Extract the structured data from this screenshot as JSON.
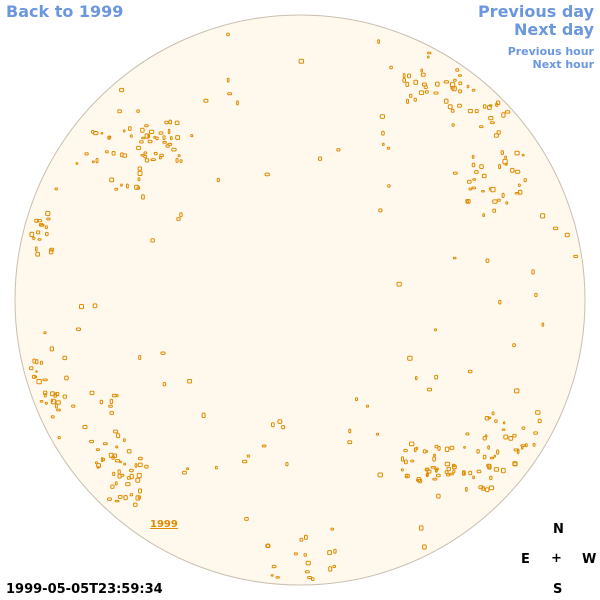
{
  "nav": {
    "back_label": "Back to 1999",
    "prev_day_label": "Previous day",
    "next_day_label": "Next day",
    "prev_hour_label": "Previous hour",
    "next_hour_label": "Next hour"
  },
  "timestamp": "1999-05-05T23:59:34",
  "marker_label": "1999",
  "compass": {
    "n": "N",
    "e": "E",
    "w": "W",
    "s": "S",
    "center": "+"
  },
  "colors": {
    "disc_fill": "#fef9ec",
    "disc_stroke": "#c8bfb0",
    "link": "#6b97e0",
    "feature": "#e08a00"
  }
}
